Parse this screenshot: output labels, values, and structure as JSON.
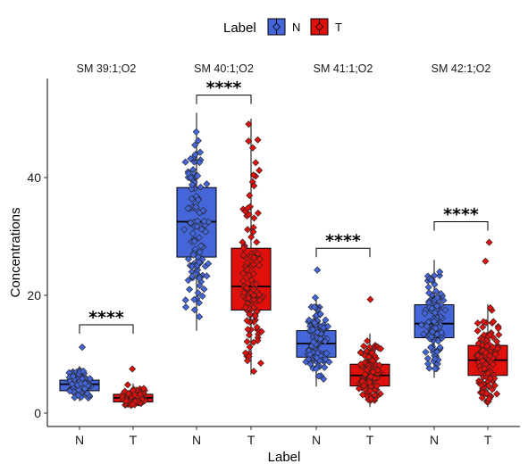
{
  "chart_data": {
    "type": "box",
    "xlabel": "Label",
    "ylabel": "Concentrations",
    "ylim": [
      -2,
      56
    ],
    "yticks": [
      0,
      20,
      40
    ],
    "legend": {
      "title": "Label",
      "placement": "top",
      "entries": [
        {
          "name": "N",
          "color": "#4466D8"
        },
        {
          "name": "T",
          "color": "#E0100C"
        }
      ]
    },
    "groups": [
      "N",
      "T"
    ],
    "panels": [
      {
        "title": "SM 39:1;O2",
        "significance": "****",
        "bracket_y": 15,
        "boxes": [
          {
            "group": "N",
            "min": 2,
            "q1": 3.8,
            "median": 4.9,
            "q3": 5.6,
            "max": 8,
            "outliers": [
              11.2
            ]
          },
          {
            "group": "T",
            "min": 1.3,
            "q1": 1.9,
            "median": 2.6,
            "q3": 3.2,
            "max": 5,
            "outliers": [
              7.5
            ]
          }
        ]
      },
      {
        "title": "SM 40:1;O2",
        "significance": "****",
        "bracket_y": 54,
        "boxes": [
          {
            "group": "N",
            "min": 14,
            "q1": 26.5,
            "median": 32.5,
            "q3": 38.3,
            "max": 51,
            "outliers": []
          },
          {
            "group": "T",
            "min": 6.5,
            "q1": 17.5,
            "median": 21.5,
            "q3": 28,
            "max": 50,
            "outliers": []
          }
        ]
      },
      {
        "title": "SM 41:1;O2",
        "significance": "****",
        "bracket_y": 28,
        "boxes": [
          {
            "group": "N",
            "min": 4.5,
            "q1": 9.5,
            "median": 11.8,
            "q3": 14,
            "max": 20,
            "outliers": [
              24.3
            ]
          },
          {
            "group": "T",
            "min": 1,
            "q1": 4.6,
            "median": 6.4,
            "q3": 8.3,
            "max": 13.5,
            "outliers": [
              19.3
            ]
          }
        ]
      },
      {
        "title": "SM 42:1;O2",
        "significance": "****",
        "bracket_y": 32.5,
        "boxes": [
          {
            "group": "N",
            "min": 6,
            "q1": 12.8,
            "median": 15.2,
            "q3": 18.4,
            "max": 26,
            "outliers": []
          },
          {
            "group": "T",
            "min": 1,
            "q1": 6.4,
            "median": 9,
            "q3": 11.5,
            "max": 18.5,
            "outliers": [
              25.8,
              29
            ]
          }
        ]
      }
    ]
  }
}
